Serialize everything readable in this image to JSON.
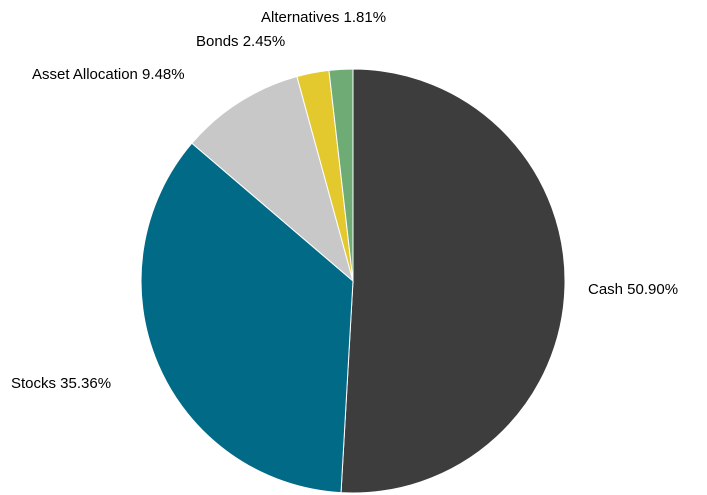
{
  "chart_data": {
    "type": "pie",
    "slices": [
      {
        "label": "Cash",
        "value": 50.9,
        "display": "Cash 50.90%",
        "color": "#3d3d3d"
      },
      {
        "label": "Stocks",
        "value": 35.36,
        "display": "Stocks 35.36%",
        "color": "#006a87"
      },
      {
        "label": "Asset Allocation",
        "value": 9.48,
        "display": "Asset Allocation 9.48%",
        "color": "#c8c8c8"
      },
      {
        "label": "Bonds",
        "value": 2.45,
        "display": "Bonds 2.45%",
        "color": "#e3c92e"
      },
      {
        "label": "Alternatives",
        "value": 1.81,
        "display": "Alternatives 1.81%",
        "color": "#6fab74"
      }
    ],
    "start_angle": "12 o'clock",
    "direction": "clockwise",
    "legend": "none"
  }
}
